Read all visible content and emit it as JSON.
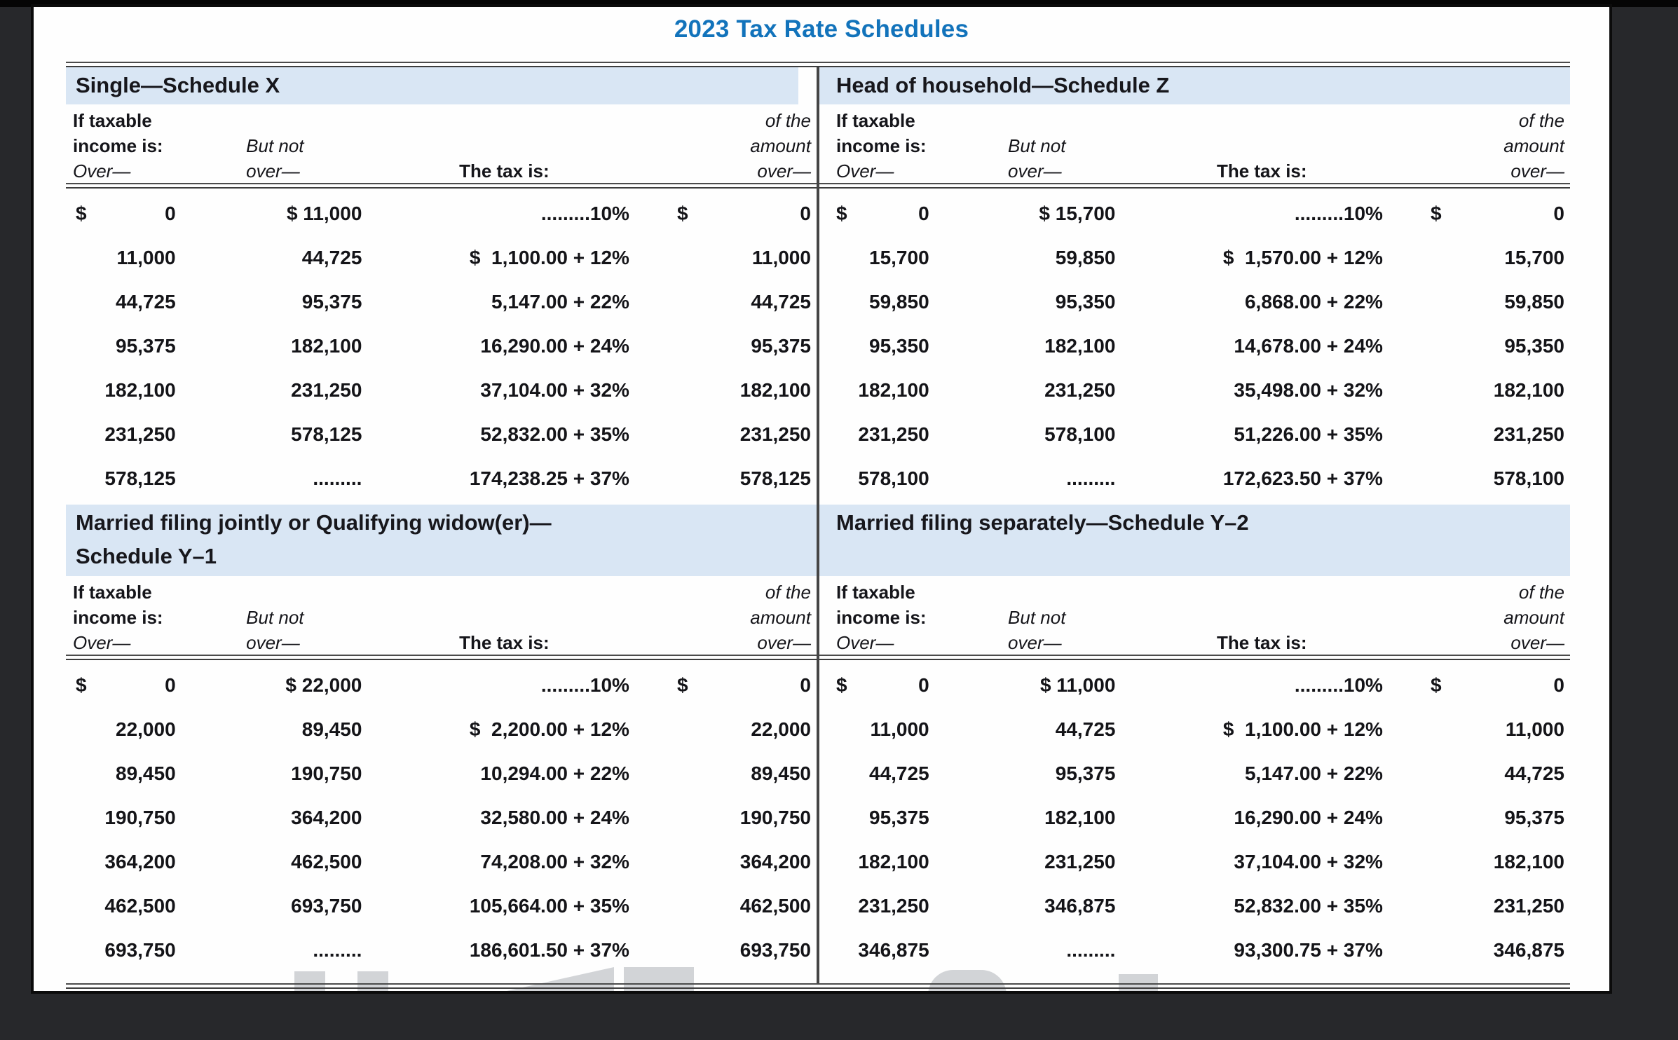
{
  "page": {
    "title": "2023 Tax Rate Schedules"
  },
  "colors": {
    "title_blue": "#1273bb",
    "band_blue": "#d9e6f4",
    "rule_gray": "#454545",
    "text": "#141418",
    "page_bg": "#fefefe",
    "outer_bg": "#27282b"
  },
  "column_headers": {
    "if_taxable": "If taxable",
    "income_is": "income is:",
    "over_cap": "Over—",
    "but_not": "But not",
    "over_low": "over—",
    "the_tax_is": "The tax is:",
    "of_the": "of the",
    "amount": "amount"
  },
  "schedules": [
    {
      "key": "single",
      "title": "Single—Schedule X",
      "title2": "",
      "rows": [
        {
          "over_d": "$",
          "over": "0",
          "butnot": "$ 11,000",
          "tax": ".........10%",
          "amt_d": "$",
          "amt": "0"
        },
        {
          "over_d": "",
          "over": "11,000",
          "butnot": "44,725",
          "tax": "$  1,100.00 + 12%",
          "amt_d": "",
          "amt": "11,000"
        },
        {
          "over_d": "",
          "over": "44,725",
          "butnot": "95,375",
          "tax": "5,147.00 + 22%",
          "amt_d": "",
          "amt": "44,725"
        },
        {
          "over_d": "",
          "over": "95,375",
          "butnot": "182,100",
          "tax": "16,290.00 + 24%",
          "amt_d": "",
          "amt": "95,375"
        },
        {
          "over_d": "",
          "over": "182,100",
          "butnot": "231,250",
          "tax": "37,104.00 + 32%",
          "amt_d": "",
          "amt": "182,100"
        },
        {
          "over_d": "",
          "over": "231,250",
          "butnot": "578,125",
          "tax": "52,832.00 + 35%",
          "amt_d": "",
          "amt": "231,250"
        },
        {
          "over_d": "",
          "over": "578,125",
          "butnot": ".........",
          "tax": "174,238.25 + 37%",
          "amt_d": "",
          "amt": "578,125"
        }
      ]
    },
    {
      "key": "head-of-household",
      "title": "Head of household—Schedule Z",
      "title2": "",
      "rows": [
        {
          "over_d": "$",
          "over": "0",
          "butnot": "$ 15,700",
          "tax": ".........10%",
          "amt_d": "$",
          "amt": "0"
        },
        {
          "over_d": "",
          "over": "15,700",
          "butnot": "59,850",
          "tax": "$  1,570.00 + 12%",
          "amt_d": "",
          "amt": "15,700"
        },
        {
          "over_d": "",
          "over": "59,850",
          "butnot": "95,350",
          "tax": "6,868.00 + 22%",
          "amt_d": "",
          "amt": "59,850"
        },
        {
          "over_d": "",
          "over": "95,350",
          "butnot": "182,100",
          "tax": "14,678.00 + 24%",
          "amt_d": "",
          "amt": "95,350"
        },
        {
          "over_d": "",
          "over": "182,100",
          "butnot": "231,250",
          "tax": "35,498.00 + 32%",
          "amt_d": "",
          "amt": "182,100"
        },
        {
          "over_d": "",
          "over": "231,250",
          "butnot": "578,100",
          "tax": "51,226.00 + 35%",
          "amt_d": "",
          "amt": "231,250"
        },
        {
          "over_d": "",
          "over": "578,100",
          "butnot": ".........",
          "tax": "172,623.50 + 37%",
          "amt_d": "",
          "amt": "578,100"
        }
      ]
    },
    {
      "key": "married-filing-jointly",
      "title": "Married filing jointly or Qualifying widow(er)—",
      "title2": "Schedule Y–1",
      "rows": [
        {
          "over_d": "$",
          "over": "0",
          "butnot": "$ 22,000",
          "tax": ".........10%",
          "amt_d": "$",
          "amt": "0"
        },
        {
          "over_d": "",
          "over": "22,000",
          "butnot": "89,450",
          "tax": "$  2,200.00 + 12%",
          "amt_d": "",
          "amt": "22,000"
        },
        {
          "over_d": "",
          "over": "89,450",
          "butnot": "190,750",
          "tax": "10,294.00 + 22%",
          "amt_d": "",
          "amt": "89,450"
        },
        {
          "over_d": "",
          "over": "190,750",
          "butnot": "364,200",
          "tax": "32,580.00 + 24%",
          "amt_d": "",
          "amt": "190,750"
        },
        {
          "over_d": "",
          "over": "364,200",
          "butnot": "462,500",
          "tax": "74,208.00 + 32%",
          "amt_d": "",
          "amt": "364,200"
        },
        {
          "over_d": "",
          "over": "462,500",
          "butnot": "693,750",
          "tax": "105,664.00 + 35%",
          "amt_d": "",
          "amt": "462,500"
        },
        {
          "over_d": "",
          "over": "693,750",
          "butnot": ".........",
          "tax": "186,601.50 + 37%",
          "amt_d": "",
          "amt": "693,750"
        }
      ]
    },
    {
      "key": "married-filing-separately",
      "title": "Married filing separately—Schedule Y–2",
      "title2": "",
      "rows": [
        {
          "over_d": "$",
          "over": "0",
          "butnot": "$ 11,000",
          "tax": ".........10%",
          "amt_d": "$",
          "amt": "0"
        },
        {
          "over_d": "",
          "over": "11,000",
          "butnot": "44,725",
          "tax": "$  1,100.00 + 12%",
          "amt_d": "",
          "amt": "11,000"
        },
        {
          "over_d": "",
          "over": "44,725",
          "butnot": "95,375",
          "tax": "5,147.00 + 22%",
          "amt_d": "",
          "amt": "44,725"
        },
        {
          "over_d": "",
          "over": "95,375",
          "butnot": "182,100",
          "tax": "16,290.00 + 24%",
          "amt_d": "",
          "amt": "95,375"
        },
        {
          "over_d": "",
          "over": "182,100",
          "butnot": "231,250",
          "tax": "37,104.00 + 32%",
          "amt_d": "",
          "amt": "182,100"
        },
        {
          "over_d": "",
          "over": "231,250",
          "butnot": "346,875",
          "tax": "52,832.00 + 35%",
          "amt_d": "",
          "amt": "231,250"
        },
        {
          "over_d": "",
          "over": "346,875",
          "butnot": ".........",
          "tax": "93,300.75 + 37%",
          "amt_d": "",
          "amt": "346,875"
        }
      ]
    }
  ]
}
